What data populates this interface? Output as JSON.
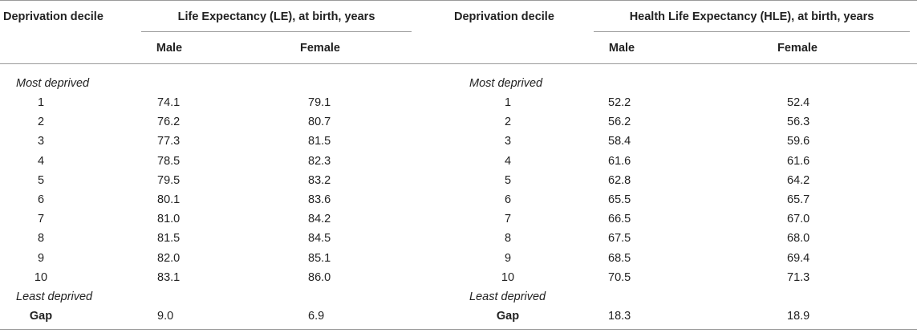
{
  "left": {
    "header_decile": "Deprivation decile",
    "header_group": "Life Expectancy (LE), at birth, years",
    "col_male": "Male",
    "col_female": "Female",
    "most_deprived": "Most deprived",
    "least_deprived": "Least deprived",
    "gap_label": "Gap",
    "rows": [
      {
        "decile": "1",
        "male": "74.1",
        "female": "79.1"
      },
      {
        "decile": "2",
        "male": "76.2",
        "female": "80.7"
      },
      {
        "decile": "3",
        "male": "77.3",
        "female": "81.5"
      },
      {
        "decile": "4",
        "male": "78.5",
        "female": "82.3"
      },
      {
        "decile": "5",
        "male": "79.5",
        "female": "83.2"
      },
      {
        "decile": "6",
        "male": "80.1",
        "female": "83.6"
      },
      {
        "decile": "7",
        "male": "81.0",
        "female": "84.2"
      },
      {
        "decile": "8",
        "male": "81.5",
        "female": "84.5"
      },
      {
        "decile": "9",
        "male": "82.0",
        "female": "85.1"
      },
      {
        "decile": "10",
        "male": "83.1",
        "female": "86.0"
      }
    ],
    "gap": {
      "male": "9.0",
      "female": "6.9"
    }
  },
  "right": {
    "header_decile": "Deprivation decile",
    "header_group": "Health Life Expectancy (HLE), at birth, years",
    "col_male": "Male",
    "col_female": "Female",
    "most_deprived": "Most deprived",
    "least_deprived": "Least deprived",
    "gap_label": "Gap",
    "rows": [
      {
        "decile": "1",
        "male": "52.2",
        "female": "52.4"
      },
      {
        "decile": "2",
        "male": "56.2",
        "female": "56.3"
      },
      {
        "decile": "3",
        "male": "58.4",
        "female": "59.6"
      },
      {
        "decile": "4",
        "male": "61.6",
        "female": "61.6"
      },
      {
        "decile": "5",
        "male": "62.8",
        "female": "64.2"
      },
      {
        "decile": "6",
        "male": "65.5",
        "female": "65.7"
      },
      {
        "decile": "7",
        "male": "66.5",
        "female": "67.0"
      },
      {
        "decile": "8",
        "male": "67.5",
        "female": "68.0"
      },
      {
        "decile": "9",
        "male": "68.5",
        "female": "69.4"
      },
      {
        "decile": "10",
        "male": "70.5",
        "female": "71.3"
      }
    ],
    "gap": {
      "male": "18.3",
      "female": "18.9"
    }
  }
}
